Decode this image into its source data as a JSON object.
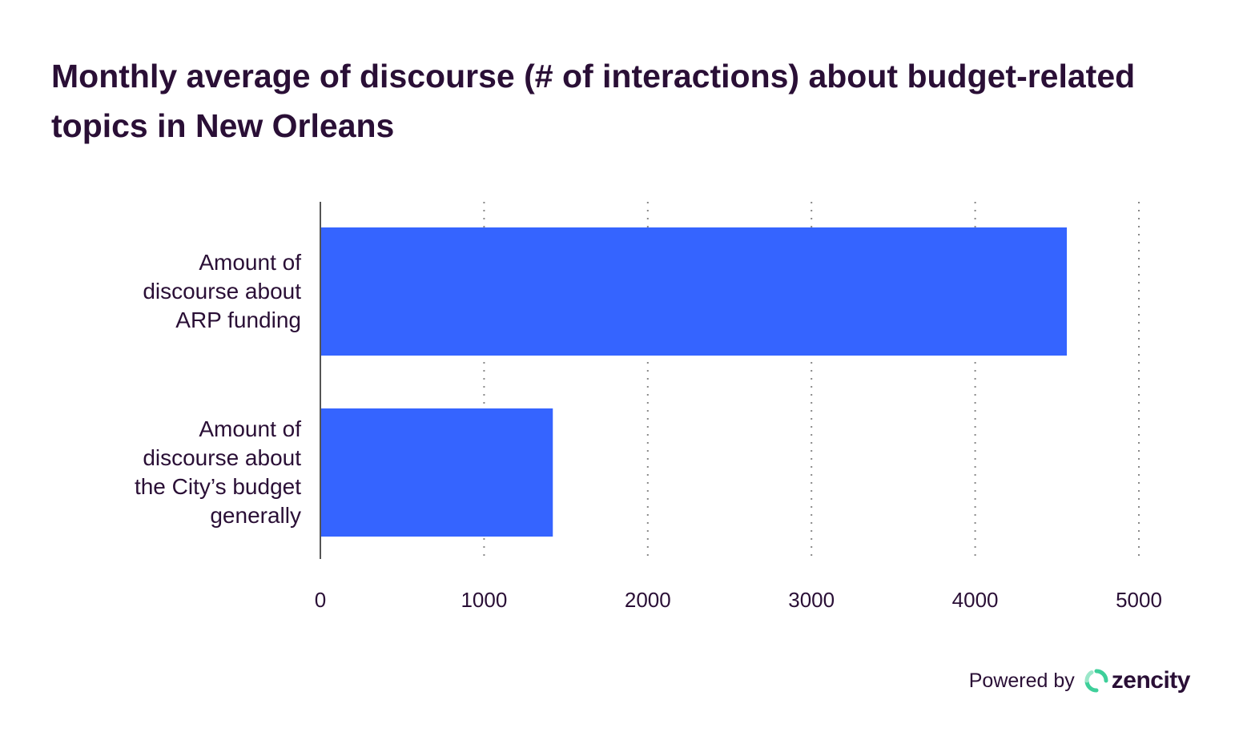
{
  "chart_data": {
    "type": "bar",
    "orientation": "horizontal",
    "title": "Monthly average of discourse (# of interactions) about budget-related topics in New Orleans",
    "categories": [
      "Amount of\ndiscourse about\nARP funding",
      "Amount of\ndiscourse about\nthe City’s budget\ngenerally"
    ],
    "values": [
      4560,
      1420
    ],
    "xlim": [
      0,
      5000
    ],
    "xticks": [
      "0",
      "1000",
      "2000",
      "3000",
      "4000",
      "5000"
    ],
    "tick_values": [
      0,
      1000,
      2000,
      3000,
      4000,
      5000
    ],
    "grid": "vertical dotted",
    "bar_color": "#3564ff",
    "xlabel": "",
    "ylabel": ""
  },
  "footer": {
    "powered_by": "Powered by",
    "brand": "zencity",
    "brand_color": "#3ecf9a"
  },
  "colors": {
    "text": "#2a0f36",
    "grid": "#888888",
    "axis": "#555555"
  }
}
